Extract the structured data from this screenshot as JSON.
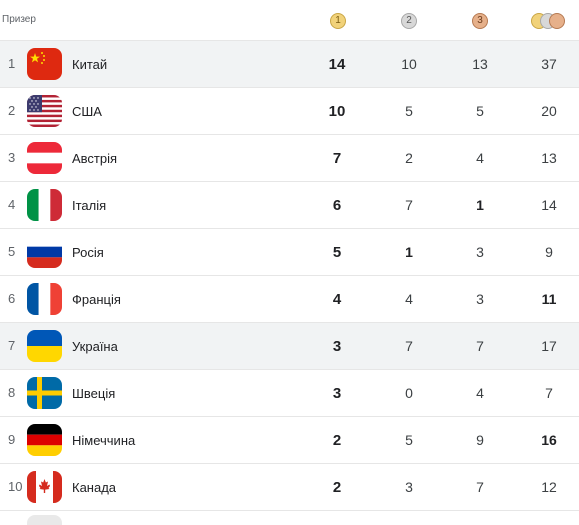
{
  "header": {
    "label": "Призер",
    "gold_medal_number": "1",
    "silver_medal_number": "2",
    "bronze_medal_number": "3"
  },
  "rows": [
    {
      "rank": "1",
      "country": "Китай",
      "gold": "14",
      "silver": "10",
      "bronze": "13",
      "total": "37",
      "flag": "china",
      "shaded": true,
      "total_bold": false,
      "silver_bold": false,
      "bronze_bold": false
    },
    {
      "rank": "2",
      "country": "США",
      "gold": "10",
      "silver": "5",
      "bronze": "5",
      "total": "20",
      "flag": "usa",
      "shaded": false,
      "total_bold": false,
      "silver_bold": false,
      "bronze_bold": false
    },
    {
      "rank": "3",
      "country": "Австрія",
      "gold": "7",
      "silver": "2",
      "bronze": "4",
      "total": "13",
      "flag": "austria",
      "shaded": false,
      "total_bold": false,
      "silver_bold": false,
      "bronze_bold": false
    },
    {
      "rank": "4",
      "country": "Італія",
      "gold": "6",
      "silver": "7",
      "bronze": "1",
      "total": "14",
      "flag": "italy",
      "shaded": false,
      "total_bold": false,
      "silver_bold": false,
      "bronze_bold": true
    },
    {
      "rank": "5",
      "country": "Росія",
      "gold": "5",
      "silver": "1",
      "bronze": "3",
      "total": "9",
      "flag": "russia",
      "shaded": false,
      "total_bold": false,
      "silver_bold": true,
      "bronze_bold": false
    },
    {
      "rank": "6",
      "country": "Франція",
      "gold": "4",
      "silver": "4",
      "bronze": "3",
      "total": "11",
      "flag": "france",
      "shaded": false,
      "total_bold": true,
      "silver_bold": false,
      "bronze_bold": false
    },
    {
      "rank": "7",
      "country": "Україна",
      "gold": "3",
      "silver": "7",
      "bronze": "7",
      "total": "17",
      "flag": "ukraine",
      "shaded": true,
      "total_bold": false,
      "silver_bold": false,
      "bronze_bold": false
    },
    {
      "rank": "8",
      "country": "Швеція",
      "gold": "3",
      "silver": "0",
      "bronze": "4",
      "total": "7",
      "flag": "sweden",
      "shaded": false,
      "total_bold": false,
      "silver_bold": false,
      "bronze_bold": false
    },
    {
      "rank": "9",
      "country": "Німеччина",
      "gold": "2",
      "silver": "5",
      "bronze": "9",
      "total": "16",
      "flag": "germany",
      "shaded": false,
      "total_bold": true,
      "silver_bold": false,
      "bronze_bold": false
    },
    {
      "rank": "10",
      "country": "Канада",
      "gold": "2",
      "silver": "3",
      "bronze": "7",
      "total": "12",
      "flag": "canada",
      "shaded": false,
      "total_bold": false,
      "silver_bold": false,
      "bronze_bold": false
    }
  ]
}
